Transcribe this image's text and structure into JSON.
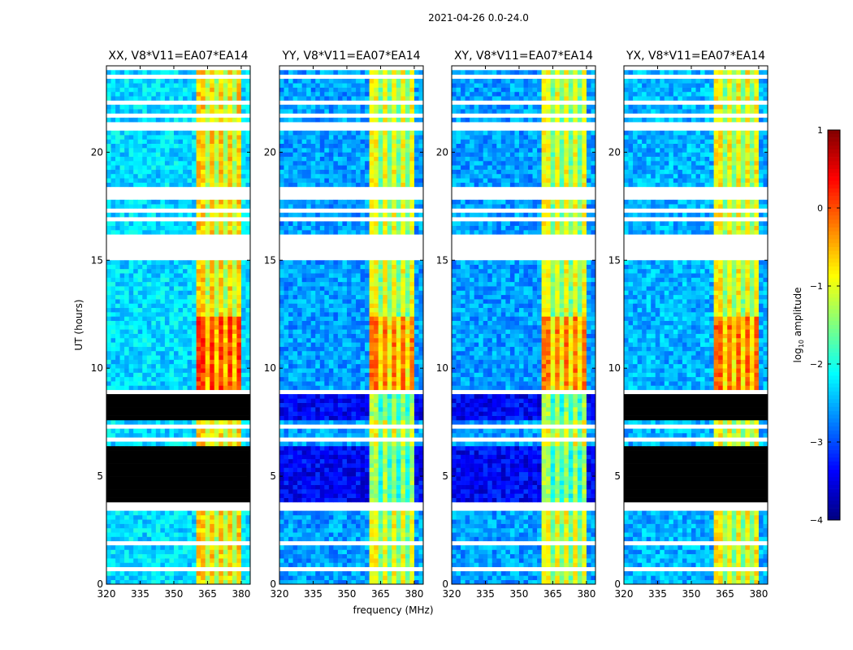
{
  "chart_data": {
    "type": "heatmap",
    "title": "2021-04-26 0.0-24.0",
    "xlabel": "frequency (MHz)",
    "ylabel": "UT (hours)",
    "xlim": [
      320,
      384
    ],
    "ylim": [
      0,
      24
    ],
    "xticks": [
      320,
      335,
      350,
      365,
      380
    ],
    "yticks": [
      0,
      5,
      10,
      15,
      20
    ],
    "colorbar": {
      "label": "log10 amplitude",
      "label_main": "log",
      "label_sub": "10",
      "label_rest": " amplitude",
      "range": [
        -4,
        1
      ],
      "ticks": [
        1,
        0,
        -1,
        -2,
        -3,
        -4
      ],
      "colormap": "jet"
    },
    "panels": [
      {
        "title": "XX, V8*V11=EA07*EA14",
        "background_level": -2.3,
        "band_level": -0.6,
        "zero_in_blank_intervals": true
      },
      {
        "title": "YY, V8*V11=EA07*EA14",
        "background_level": -2.6,
        "band_level": -0.9,
        "zero_in_blank_intervals": false
      },
      {
        "title": "XY, V8*V11=EA07*EA14",
        "background_level": -2.6,
        "band_level": -0.9,
        "zero_in_blank_intervals": false
      },
      {
        "title": "YX, V8*V11=EA07*EA14",
        "background_level": -2.5,
        "band_level": -0.8,
        "zero_in_blank_intervals": true
      }
    ],
    "rfi_band_mhz": [
      360.5,
      380
    ],
    "rfi_gaps_mhz": [
      365,
      369.5,
      373.5,
      377
    ],
    "bright_interval_hours": [
      9,
      12.5
    ],
    "flagged_intervals_hours": [
      [
        23.4,
        23.65
      ],
      [
        22.25,
        22.35
      ],
      [
        22.55,
        22.65
      ],
      [
        21.1,
        21.5
      ],
      [
        21.6,
        21.9
      ],
      [
        18.8,
        18.9
      ],
      [
        19.0,
        19.1
      ],
      [
        18.3,
        18.45
      ],
      [
        17.8,
        18.15
      ],
      [
        16.9,
        17.0
      ],
      [
        17.2,
        17.45
      ],
      [
        15.1,
        16.3
      ],
      [
        12.55,
        12.65
      ],
      [
        12.8,
        12.9
      ],
      [
        8.85,
        8.95
      ],
      [
        6.4,
        6.5
      ],
      [
        6.7,
        6.8
      ],
      [
        7.0,
        7.1
      ],
      [
        7.3,
        7.4
      ],
      [
        4.4,
        4.5
      ],
      [
        3.5,
        3.6
      ],
      [
        3.7,
        3.8
      ],
      [
        3.0,
        3.1
      ],
      [
        1.9,
        2.0
      ],
      [
        0.6,
        0.9
      ]
    ],
    "blank_intervals_hours": [
      [
        7.6,
        8.85
      ],
      [
        3.8,
        6.35
      ]
    ]
  }
}
